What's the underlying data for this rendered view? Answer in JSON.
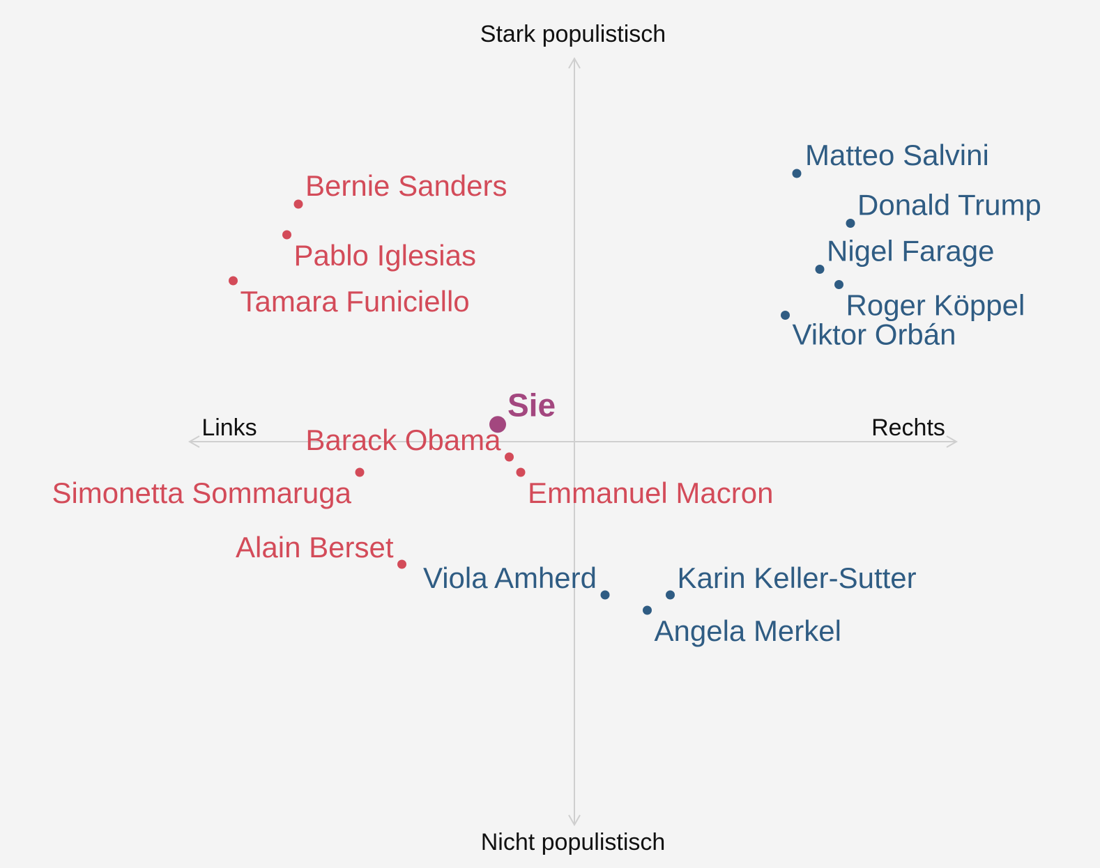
{
  "chart_data": {
    "type": "scatter",
    "title": "",
    "axes": {
      "top": "Stark populistisch",
      "bottom": "Nicht populistisch",
      "left": "Links",
      "right": "Rechts"
    },
    "xlim": [
      -1,
      1
    ],
    "ylim": [
      -1,
      1
    ],
    "colors": {
      "left": "#d34b59",
      "right": "#2f5c83",
      "you": "#a3477f",
      "axis": "#cfcfcf"
    },
    "you": {
      "label": "Sie",
      "x": -0.2,
      "y": 0.045
    },
    "points": [
      {
        "name": "Matteo Salvini",
        "x": 0.58,
        "y": 0.7,
        "group": "right",
        "anchor": "start",
        "dx": 12,
        "dy": -12
      },
      {
        "name": "Donald Trump",
        "x": 0.72,
        "y": 0.57,
        "group": "right",
        "anchor": "start",
        "dx": 10,
        "dy": -12
      },
      {
        "name": "Nigel Farage",
        "x": 0.64,
        "y": 0.45,
        "group": "right",
        "anchor": "start",
        "dx": 10,
        "dy": -12
      },
      {
        "name": "Roger Köppel",
        "x": 0.69,
        "y": 0.41,
        "group": "right",
        "anchor": "start",
        "dx": 10,
        "dy": 44
      },
      {
        "name": "Viktor Orbán",
        "x": 0.55,
        "y": 0.33,
        "group": "right",
        "anchor": "start",
        "dx": 10,
        "dy": 42
      },
      {
        "name": "Bernie Sanders",
        "x": -0.72,
        "y": 0.62,
        "group": "left",
        "anchor": "start",
        "dx": 10,
        "dy": -12
      },
      {
        "name": "Pablo Iglesias",
        "x": -0.75,
        "y": 0.54,
        "group": "left",
        "anchor": "start",
        "dx": 10,
        "dy": 44
      },
      {
        "name": "Tamara Funiciello",
        "x": -0.89,
        "y": 0.42,
        "group": "left",
        "anchor": "start",
        "dx": 10,
        "dy": 44
      },
      {
        "name": "Barack Obama",
        "x": -0.17,
        "y": -0.04,
        "group": "left",
        "anchor": "end",
        "dx": -12,
        "dy": -10
      },
      {
        "name": "Emmanuel Macron",
        "x": -0.14,
        "y": -0.08,
        "group": "left",
        "anchor": "start",
        "dx": 10,
        "dy": 44
      },
      {
        "name": "Simonetta Sommaruga",
        "x": -0.56,
        "y": -0.08,
        "group": "left",
        "anchor": "end",
        "dx": -12,
        "dy": 44
      },
      {
        "name": "Alain Berset",
        "x": -0.45,
        "y": -0.32,
        "group": "left",
        "anchor": "end",
        "dx": -12,
        "dy": -10
      },
      {
        "name": "Viola Amherd",
        "x": 0.08,
        "y": -0.4,
        "group": "right",
        "anchor": "end",
        "dx": -12,
        "dy": -10
      },
      {
        "name": "Karin Keller-Sutter",
        "x": 0.25,
        "y": -0.4,
        "group": "right",
        "anchor": "start",
        "dx": 10,
        "dy": -10
      },
      {
        "name": "Angela Merkel",
        "x": 0.19,
        "y": -0.44,
        "group": "right",
        "anchor": "start",
        "dx": 10,
        "dy": 44
      }
    ]
  }
}
